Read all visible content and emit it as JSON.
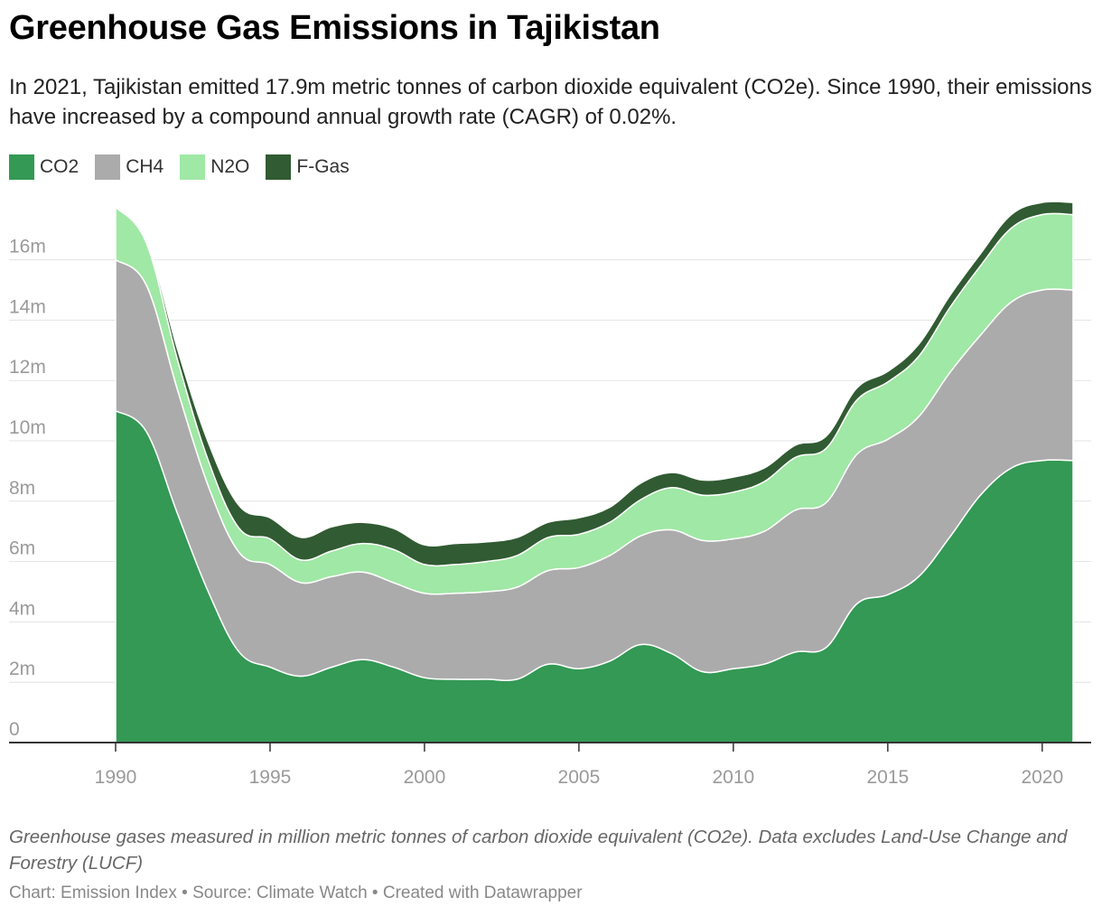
{
  "title": "Greenhouse Gas Emissions in Tajikistan",
  "subtitle": "In 2021, Tajikistan emitted 17.9m metric tonnes of carbon dioxide equivalent (CO2e). Since 1990, their emissions have increased by a compound annual growth rate (CAGR) of 0.02%.",
  "notes": "Greenhouse gases measured in million metric tonnes of carbon dioxide equivalent (CO2e). Data excludes Land-Use Change and Forestry (LUCF)",
  "credits": "Chart: Emission Index • Source: Climate Watch • Created with Datawrapper",
  "colors": {
    "CO2": "#339954",
    "CH4": "#ababab",
    "N2O": "#a0e8a5",
    "F-Gas": "#315b32"
  },
  "chart_data": {
    "type": "area",
    "stacked": true,
    "x": [
      1990,
      1991,
      1992,
      1993,
      1994,
      1995,
      1996,
      1997,
      1998,
      1999,
      2000,
      2001,
      2002,
      2003,
      2004,
      2005,
      2006,
      2007,
      2008,
      2009,
      2010,
      2011,
      2012,
      2013,
      2014,
      2015,
      2016,
      2017,
      2018,
      2019,
      2020,
      2021
    ],
    "series": [
      {
        "name": "CO2",
        "values": [
          11.0,
          10.3,
          7.6,
          5.0,
          3.0,
          2.5,
          2.2,
          2.5,
          2.75,
          2.5,
          2.15,
          2.1,
          2.1,
          2.1,
          2.6,
          2.45,
          2.7,
          3.25,
          2.95,
          2.35,
          2.45,
          2.6,
          3.0,
          3.15,
          4.6,
          4.9,
          5.5,
          6.8,
          8.2,
          9.1,
          9.35,
          9.35
        ]
      },
      {
        "name": "CH4",
        "values": [
          5.0,
          4.85,
          4.1,
          3.5,
          3.3,
          3.4,
          3.1,
          3.0,
          2.9,
          2.8,
          2.8,
          2.85,
          2.9,
          3.05,
          3.1,
          3.35,
          3.5,
          3.6,
          4.1,
          4.35,
          4.3,
          4.4,
          4.7,
          4.8,
          4.95,
          5.15,
          5.3,
          5.45,
          5.3,
          5.5,
          5.65,
          5.65
        ]
      },
      {
        "name": "N2O",
        "values": [
          1.75,
          1.4,
          1.0,
          0.85,
          0.8,
          0.85,
          0.75,
          0.85,
          0.95,
          1.1,
          0.95,
          0.95,
          1.0,
          1.05,
          1.1,
          1.1,
          1.1,
          1.2,
          1.4,
          1.5,
          1.55,
          1.65,
          1.75,
          1.8,
          1.8,
          1.9,
          2.0,
          2.15,
          2.3,
          2.45,
          2.5,
          2.5
        ]
      },
      {
        "name": "F-Gas",
        "values": [
          0.0,
          0.1,
          0.35,
          0.6,
          0.75,
          0.7,
          0.75,
          0.8,
          0.7,
          0.7,
          0.65,
          0.7,
          0.65,
          0.6,
          0.5,
          0.55,
          0.5,
          0.55,
          0.5,
          0.5,
          0.5,
          0.45,
          0.4,
          0.4,
          0.4,
          0.35,
          0.4,
          0.4,
          0.4,
          0.45,
          0.4,
          0.4
        ]
      }
    ],
    "y_ticks": [
      "0",
      "2m",
      "4m",
      "6m",
      "8m",
      "10m",
      "12m",
      "14m",
      "16m"
    ],
    "x_ticks": [
      "1990",
      "1995",
      "2000",
      "2005",
      "2010",
      "2015",
      "2020"
    ],
    "ylim": [
      0,
      18
    ],
    "xlim": [
      1990,
      2021
    ],
    "grid": true,
    "legend_position": "top-left"
  }
}
